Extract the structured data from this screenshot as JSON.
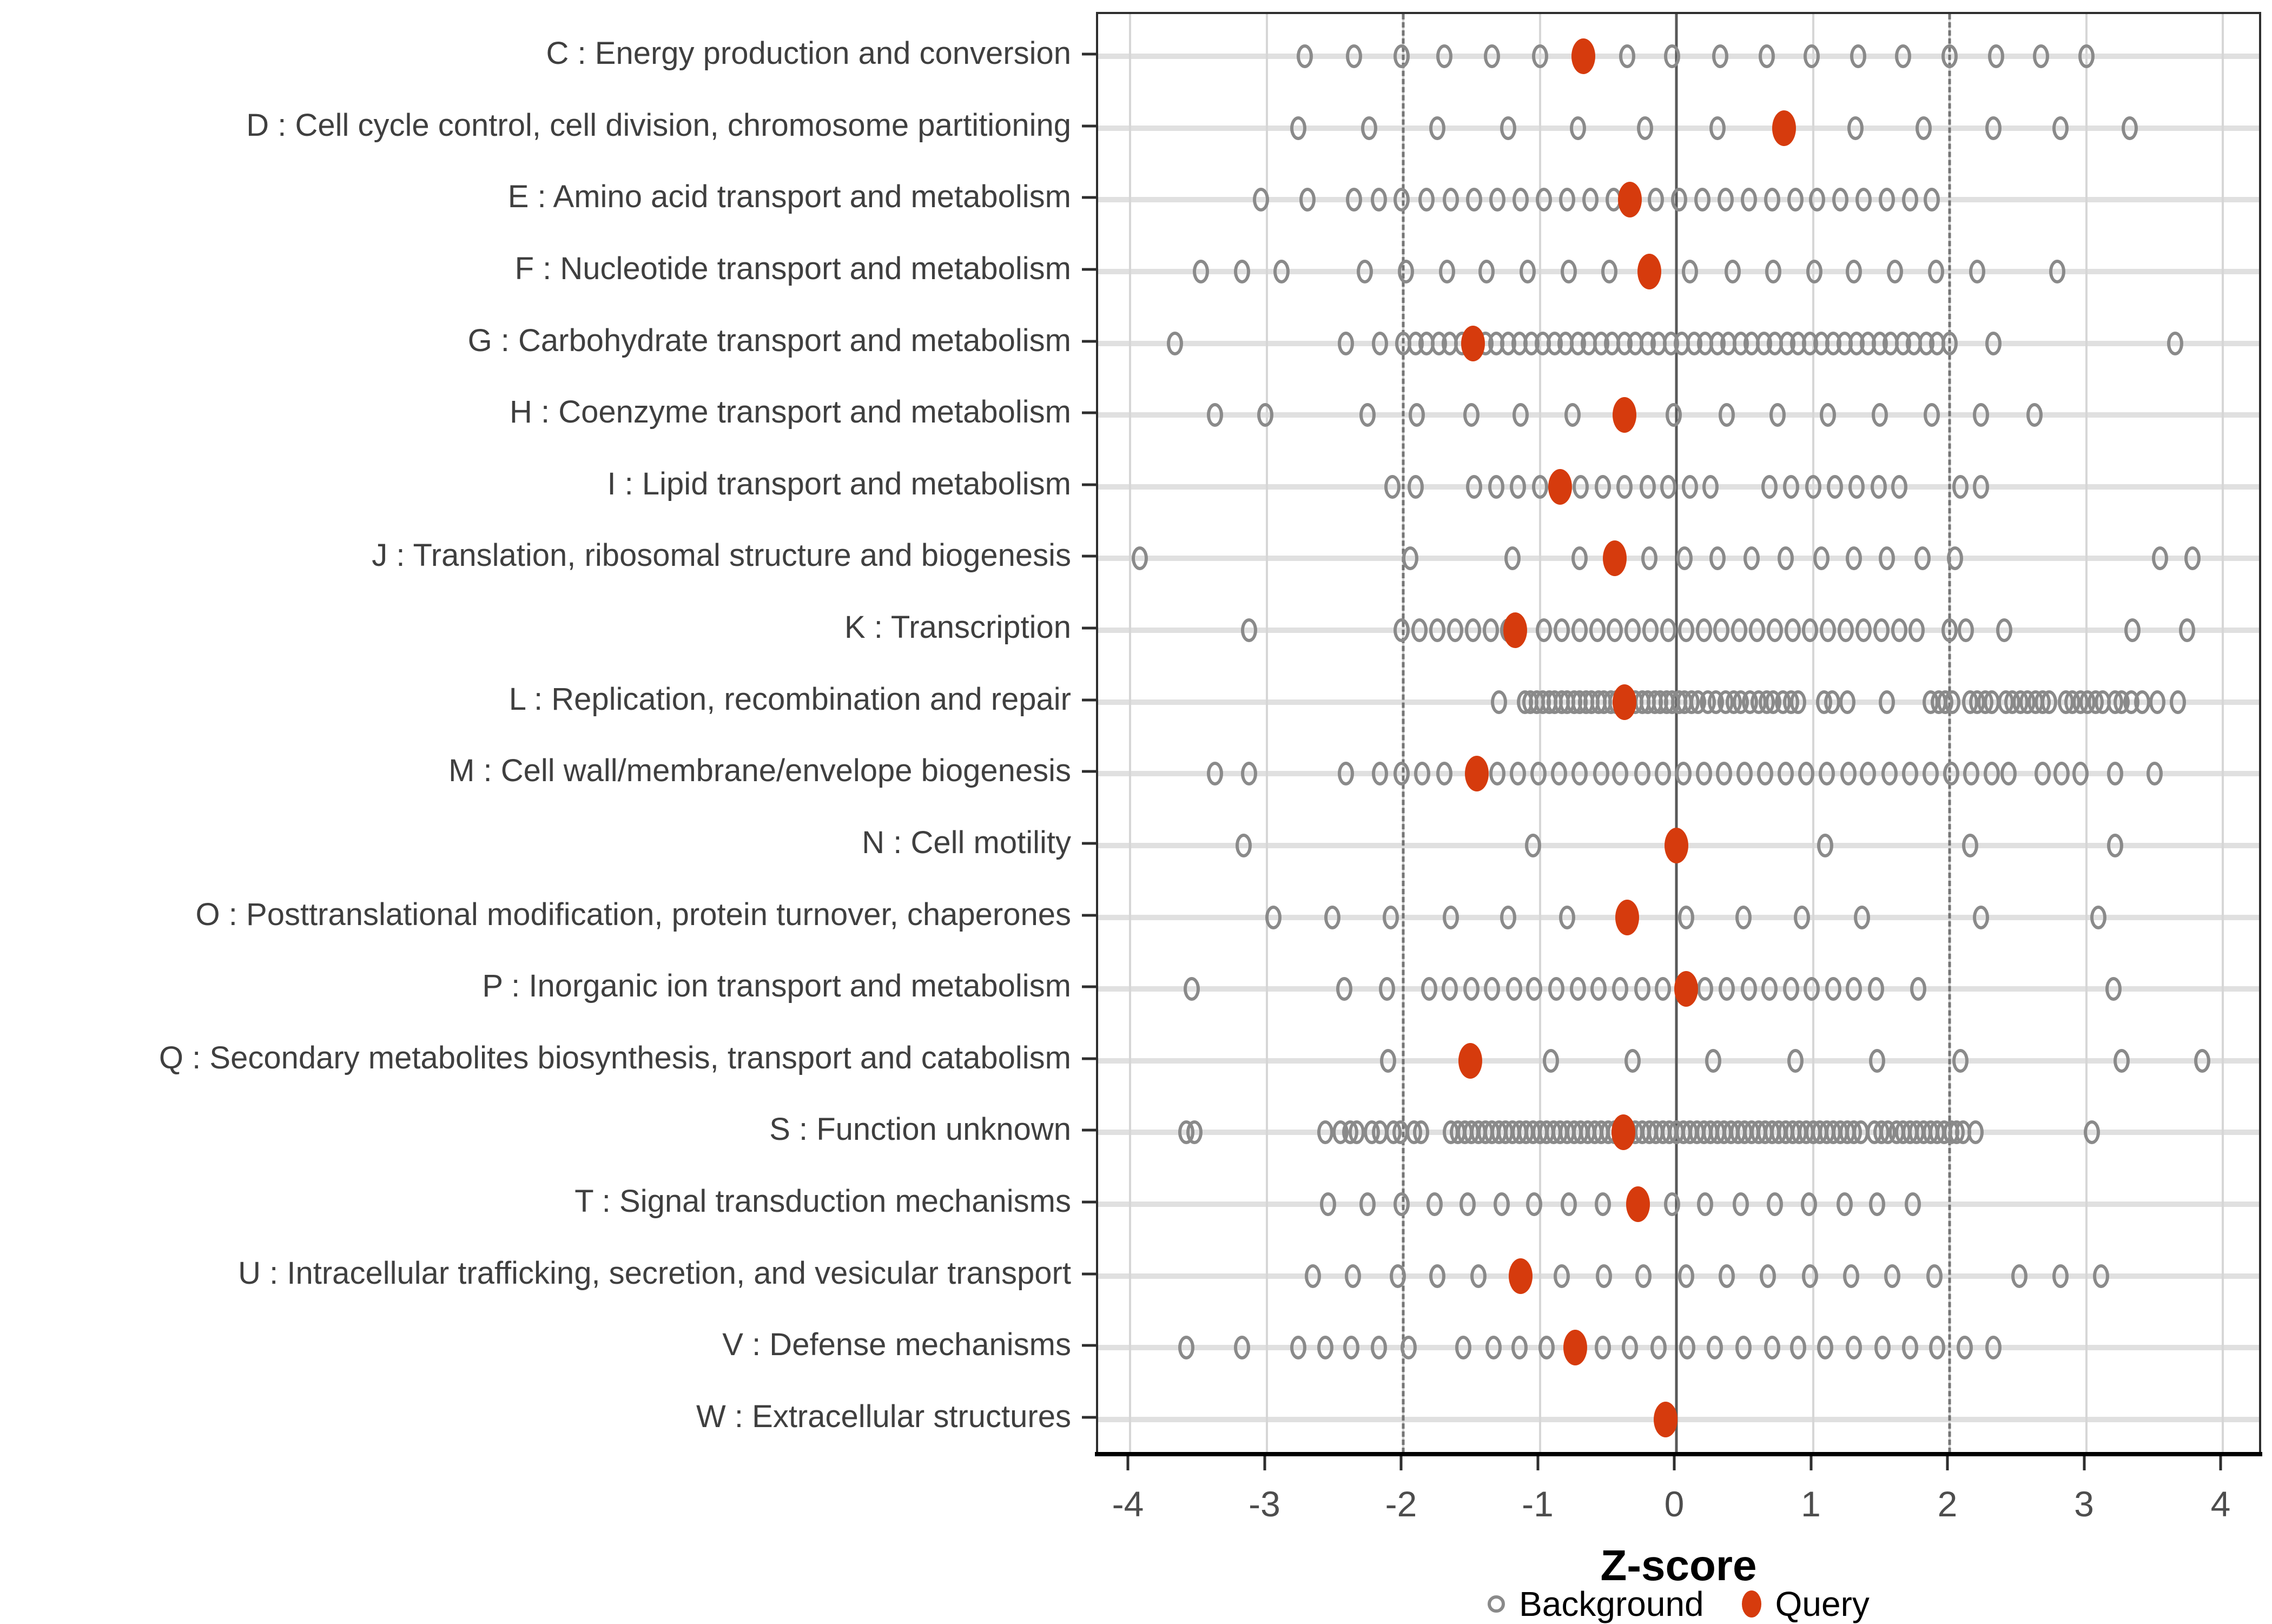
{
  "axis": {
    "x_title": "Z-score",
    "x_ticks": [
      -4,
      -3,
      -2,
      -1,
      0,
      1,
      2,
      3,
      4
    ],
    "x_range": [
      -4.35,
      4.35
    ],
    "reference_lines": {
      "zero": 0,
      "dashed": [
        -2,
        2
      ]
    }
  },
  "legend": {
    "background_label": "Background",
    "query_label": "Query"
  },
  "colors": {
    "query_red": "#D63B0D",
    "background_gray": "#8a8a8a",
    "stripe_gray": "#e0e0e0",
    "grid_gray": "#d6d6d6",
    "dashed_gray": "#757575",
    "zero_line_gray": "#595959"
  },
  "chart_data": {
    "type": "scatter",
    "title": "",
    "xlabel": "Z-score",
    "ylabel": "",
    "xlim": [
      -4.35,
      4.35
    ],
    "grid": "major-light, dashed at -2 and +2, solid line at 0",
    "legend_position": "bottom",
    "series_names": [
      "Background",
      "Query"
    ],
    "categories": [
      {
        "label": "C : Energy production and conversion",
        "query": -0.68,
        "background": [
          -2.72,
          -2.36,
          -2.01,
          -1.7,
          -1.35,
          -1.0,
          -0.36,
          -0.03,
          0.32,
          0.66,
          0.99,
          1.33,
          1.66,
          2.0,
          2.34,
          2.67,
          3.0
        ]
      },
      {
        "label": "D : Cell cycle control, cell division, chromosome partitioning",
        "query": 0.79,
        "background": [
          -2.77,
          -2.25,
          -1.75,
          -1.23,
          -0.72,
          -0.23,
          0.3,
          1.31,
          1.81,
          2.32,
          2.81,
          3.32
        ]
      },
      {
        "label": "E : Amino acid transport and metabolism",
        "query": -0.34,
        "background": [
          -3.04,
          -2.7,
          -2.36,
          -2.18,
          -2.01,
          -1.83,
          -1.65,
          -1.48,
          -1.31,
          -1.14,
          -0.97,
          -0.8,
          -0.63,
          -0.46,
          -0.15,
          0.02,
          0.19,
          0.36,
          0.53,
          0.7,
          0.87,
          1.03,
          1.2,
          1.37,
          1.54,
          1.71,
          1.87
        ]
      },
      {
        "label": "F : Nucleotide transport and metabolism",
        "query": -0.2,
        "background": [
          -3.48,
          -3.18,
          -2.89,
          -2.28,
          -1.98,
          -1.68,
          -1.39,
          -1.09,
          -0.79,
          -0.49,
          0.1,
          0.41,
          0.71,
          1.01,
          1.3,
          1.6,
          1.9,
          2.2,
          2.79
        ]
      },
      {
        "label": "G : Carbohydrate transport and metabolism",
        "query": -1.49,
        "background": [
          -3.67,
          -2.42,
          -2.17,
          -2.0,
          -1.91,
          -1.83,
          -1.74,
          -1.66,
          -1.57,
          -1.4,
          -1.32,
          -1.23,
          -1.15,
          -1.06,
          -0.98,
          -0.89,
          -0.81,
          -0.72,
          -0.64,
          -0.55,
          -0.47,
          -0.38,
          -0.3,
          -0.21,
          -0.13,
          -0.04,
          0.04,
          0.13,
          0.21,
          0.3,
          0.38,
          0.47,
          0.55,
          0.64,
          0.72,
          0.81,
          0.89,
          0.98,
          1.06,
          1.15,
          1.23,
          1.32,
          1.4,
          1.49,
          1.57,
          1.66,
          1.74,
          1.83,
          1.91,
          2.0,
          2.32,
          3.65
        ]
      },
      {
        "label": "H : Coenzyme transport and metabolism",
        "query": -0.38,
        "background": [
          -3.38,
          -3.01,
          -2.26,
          -1.9,
          -1.5,
          -1.14,
          -0.76,
          -0.02,
          0.37,
          0.74,
          1.11,
          1.49,
          1.87,
          2.23,
          2.62
        ]
      },
      {
        "label": "I : Lipid transport and metabolism",
        "query": -0.85,
        "background": [
          -2.08,
          -1.91,
          -1.48,
          -1.32,
          -1.16,
          -1.0,
          -0.7,
          -0.54,
          -0.38,
          -0.21,
          -0.06,
          0.1,
          0.25,
          0.68,
          0.84,
          1.0,
          1.16,
          1.32,
          1.48,
          1.63,
          2.08,
          2.23
        ]
      },
      {
        "label": "J : Translation, ribosomal structure and biogenesis",
        "query": -0.45,
        "background": [
          -3.93,
          -1.95,
          -1.2,
          -0.71,
          -0.2,
          0.06,
          0.3,
          0.55,
          0.8,
          1.06,
          1.3,
          1.54,
          1.8,
          2.04,
          3.54,
          3.78
        ]
      },
      {
        "label": "K : Transcription",
        "query": -1.18,
        "background": [
          -3.13,
          -2.01,
          -1.88,
          -1.75,
          -1.62,
          -1.49,
          -1.36,
          -1.23,
          -0.97,
          -0.84,
          -0.71,
          -0.58,
          -0.45,
          -0.32,
          -0.19,
          -0.06,
          0.07,
          0.2,
          0.33,
          0.46,
          0.59,
          0.72,
          0.85,
          0.98,
          1.11,
          1.24,
          1.37,
          1.5,
          1.63,
          1.76,
          2.0,
          2.12,
          2.4,
          3.34,
          3.74
        ]
      },
      {
        "label": "L : Replication, recombination and repair",
        "query": -0.38,
        "background": [
          -1.3,
          -1.11,
          -1.07,
          -1.02,
          -0.98,
          -0.93,
          -0.89,
          -0.84,
          -0.8,
          -0.75,
          -0.71,
          -0.66,
          -0.62,
          -0.57,
          -0.53,
          -0.48,
          -0.44,
          -0.3,
          -0.25,
          -0.21,
          -0.16,
          -0.12,
          -0.07,
          -0.03,
          0.02,
          0.06,
          0.11,
          0.16,
          0.23,
          0.29,
          0.36,
          0.42,
          0.47,
          0.54,
          0.6,
          0.66,
          0.71,
          0.78,
          0.84,
          0.89,
          1.08,
          1.14,
          1.25,
          1.54,
          1.86,
          1.92,
          1.97,
          2.02,
          2.15,
          2.2,
          2.26,
          2.31,
          2.41,
          2.46,
          2.52,
          2.57,
          2.63,
          2.68,
          2.73,
          2.85,
          2.9,
          2.96,
          3.01,
          3.07,
          3.12,
          3.21,
          3.26,
          3.33,
          3.41,
          3.52,
          3.67
        ]
      },
      {
        "label": "M : Cell wall/membrane/envelope biogenesis",
        "query": -1.46,
        "background": [
          -3.38,
          -3.13,
          -2.42,
          -2.17,
          -2.01,
          -1.86,
          -1.7,
          -1.31,
          -1.16,
          -1.01,
          -0.86,
          -0.71,
          -0.55,
          -0.41,
          -0.25,
          -0.1,
          0.05,
          0.2,
          0.35,
          0.5,
          0.65,
          0.8,
          0.95,
          1.1,
          1.26,
          1.4,
          1.56,
          1.71,
          1.86,
          2.01,
          2.16,
          2.31,
          2.43,
          2.68,
          2.82,
          2.96,
          3.21,
          3.5
        ]
      },
      {
        "label": "N : Cell motility",
        "query": 0.0,
        "background": [
          -3.17,
          -1.05,
          1.09,
          2.15,
          3.21
        ]
      },
      {
        "label": "O : Posttranslational modification, protein turnover, chaperones",
        "query": -0.36,
        "background": [
          -2.95,
          -2.52,
          -2.09,
          -1.65,
          -1.23,
          -0.8,
          0.07,
          0.49,
          0.92,
          1.36,
          2.23,
          3.09
        ]
      },
      {
        "label": "P : Inorganic ion transport and metabolism",
        "query": 0.07,
        "background": [
          -3.55,
          -2.43,
          -2.12,
          -1.81,
          -1.66,
          -1.5,
          -1.35,
          -1.19,
          -1.04,
          -0.88,
          -0.72,
          -0.57,
          -0.41,
          -0.25,
          -0.1,
          0.21,
          0.37,
          0.53,
          0.68,
          0.84,
          0.99,
          1.15,
          1.3,
          1.46,
          1.77,
          3.2
        ]
      },
      {
        "label": "Q : Secondary metabolites biosynthesis, transport and catabolism",
        "query": -1.51,
        "background": [
          -2.11,
          -0.92,
          -0.32,
          0.27,
          0.87,
          1.47,
          2.08,
          3.26,
          3.85
        ]
      },
      {
        "label": "S : Function unknown",
        "query": -0.39,
        "background": [
          -3.59,
          -3.53,
          -2.57,
          -2.46,
          -2.39,
          -2.34,
          -2.23,
          -2.17,
          -2.07,
          -2.02,
          -1.92,
          -1.87,
          -1.65,
          -1.6,
          -1.55,
          -1.5,
          -1.45,
          -1.4,
          -1.35,
          -1.3,
          -1.25,
          -1.2,
          -1.15,
          -1.1,
          -1.05,
          -1.0,
          -0.95,
          -0.9,
          -0.85,
          -0.8,
          -0.75,
          -0.7,
          -0.65,
          -0.6,
          -0.55,
          -0.5,
          -0.45,
          -0.35,
          -0.3,
          -0.25,
          -0.2,
          -0.15,
          -0.1,
          -0.05,
          0.0,
          0.05,
          0.1,
          0.15,
          0.2,
          0.25,
          0.3,
          0.35,
          0.4,
          0.45,
          0.5,
          0.55,
          0.6,
          0.65,
          0.7,
          0.75,
          0.8,
          0.85,
          0.9,
          0.95,
          1.0,
          1.05,
          1.1,
          1.15,
          1.2,
          1.25,
          1.3,
          1.35,
          1.45,
          1.5,
          1.55,
          1.61,
          1.66,
          1.71,
          1.76,
          1.81,
          1.86,
          1.91,
          1.96,
          2.01,
          2.05,
          2.1,
          2.19,
          3.04
        ]
      },
      {
        "label": "T : Signal transduction mechanisms",
        "query": -0.28,
        "background": [
          -2.55,
          -2.26,
          -2.01,
          -1.77,
          -1.53,
          -1.28,
          -1.04,
          -0.79,
          -0.54,
          -0.03,
          0.21,
          0.47,
          0.72,
          0.97,
          1.23,
          1.47,
          1.73
        ]
      },
      {
        "label": "U : Intracellular trafficking, secretion, and vesicular transport",
        "query": -1.14,
        "background": [
          -2.66,
          -2.37,
          -2.04,
          -1.75,
          -1.45,
          -0.84,
          -0.53,
          -0.24,
          0.07,
          0.37,
          0.67,
          0.98,
          1.28,
          1.58,
          1.89,
          2.51,
          2.81,
          3.11
        ]
      },
      {
        "label": "V : Defense mechanisms",
        "query": -0.74,
        "background": [
          -3.59,
          -3.18,
          -2.77,
          -2.57,
          -2.38,
          -2.18,
          -1.96,
          -1.56,
          -1.34,
          -1.15,
          -0.95,
          -0.54,
          -0.34,
          -0.13,
          0.08,
          0.28,
          0.49,
          0.7,
          0.89,
          1.09,
          1.3,
          1.51,
          1.71,
          1.91,
          2.11,
          2.32
        ]
      },
      {
        "label": "W : Extracellular structures",
        "query": -0.08,
        "background": []
      }
    ]
  }
}
